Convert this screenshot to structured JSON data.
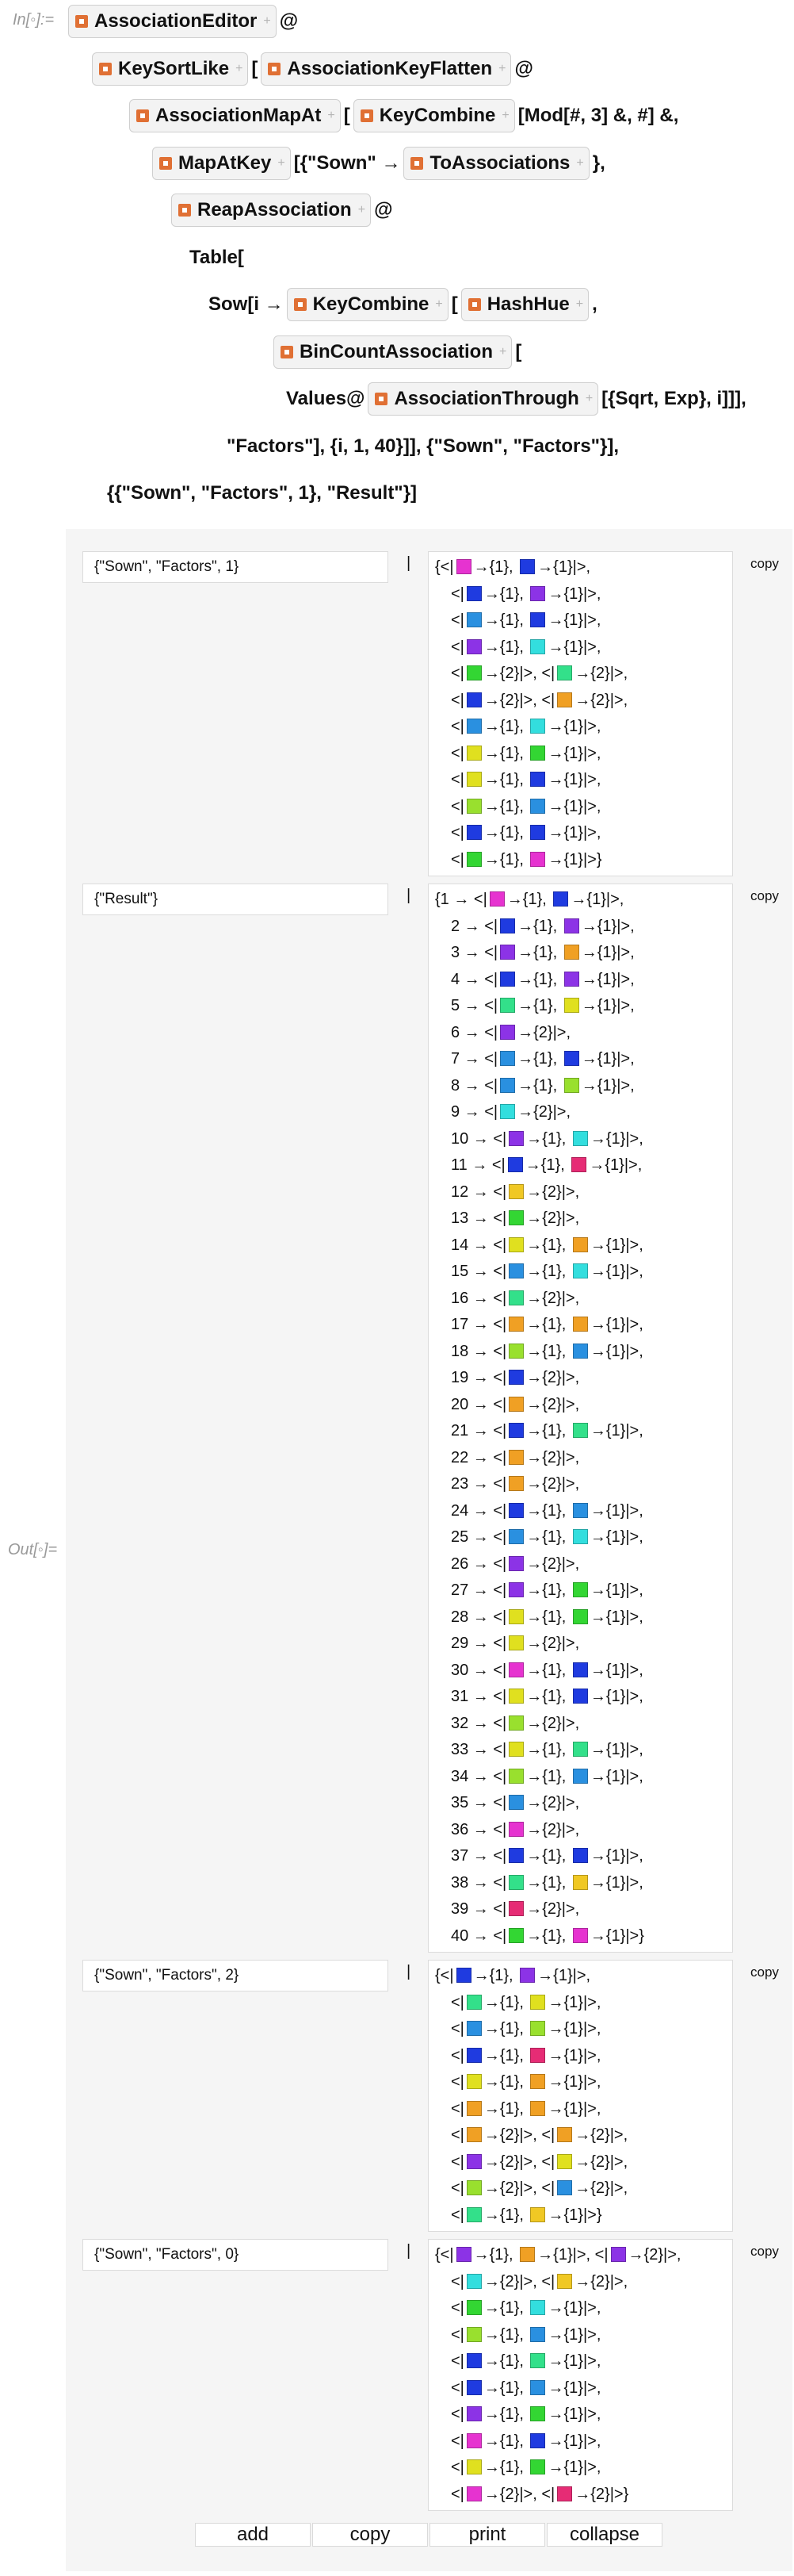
{
  "input_label": "In[◦]:=",
  "output_label": "Out[◦]=",
  "code": [
    [
      {
        "button": "AssociationEditor"
      },
      "@"
    ],
    [
      {
        "button": "KeySortLike"
      },
      "[",
      {
        "button": "AssociationKeyFlatten"
      },
      "@"
    ],
    [
      {
        "button": "AssociationMapAt"
      },
      "[",
      {
        "button": "KeyCombine"
      },
      "[Mod[#, 3] &, #] &,"
    ],
    [
      {
        "button": "MapAtKey"
      },
      "[{\"Sown\" → ",
      {
        "button": "ToAssociations"
      },
      "},"
    ],
    [
      {
        "button": "ReapAssociation"
      },
      "@"
    ],
    [
      "Table["
    ],
    [
      "Sow[i → ",
      {
        "button": "KeyCombine"
      },
      "[",
      {
        "button": "HashHue"
      },
      ","
    ],
    [
      {
        "button": "BinCountAssociation"
      },
      "["
    ],
    [
      "Values@",
      {
        "button": "AssociationThrough"
      },
      "[{Sqrt, Exp}, i]]],"
    ],
    [
      "\"Factors\"], {i, 1, 40}]], {\"Sown\", \"Factors\"}],"
    ],
    [
      "{{\"Sown\", \"Factors\", 1}, \"Result\"}]"
    ]
  ],
  "output": {
    "separator": "|",
    "rows": [
      {
        "key": "{\"Sown\", \"Factors\", 1}",
        "action": "copy",
        "lines": [
          [
            "{<|",
            {
              "swatch": "#e633d0"
            },
            "→{1}, ",
            {
              "swatch": "#1f3be0"
            },
            "→{1}|>,"
          ],
          [
            "<|",
            {
              "swatch": "#1f3be0"
            },
            "→{1}, ",
            {
              "swatch": "#8c33e6"
            },
            "→{1}|>,"
          ],
          [
            "<|",
            {
              "swatch": "#2a90e0"
            },
            "→{1}, ",
            {
              "swatch": "#1f3be0"
            },
            "→{1}|>,"
          ],
          [
            "<|",
            {
              "swatch": "#8c33e6"
            },
            "→{1}, ",
            {
              "swatch": "#33dede"
            },
            "→{1}|>,"
          ],
          [
            "<|",
            {
              "swatch": "#33d633"
            },
            "→{2}|>, <|",
            {
              "swatch": "#33e08a"
            },
            "→{2}|>,"
          ],
          [
            "<|",
            {
              "swatch": "#1f3be0"
            },
            "→{2}|>, <|",
            {
              "swatch": "#f0a024"
            },
            "→{2}|>,"
          ],
          [
            "<|",
            {
              "swatch": "#2a90e0"
            },
            "→{1}, ",
            {
              "swatch": "#33dede"
            },
            "→{1}|>,"
          ],
          [
            "<|",
            {
              "swatch": "#e0e01f"
            },
            "→{1}, ",
            {
              "swatch": "#33d633"
            },
            "→{1}|>,"
          ],
          [
            "<|",
            {
              "swatch": "#e0e01f"
            },
            "→{1}, ",
            {
              "swatch": "#1f3be0"
            },
            "→{1}|>,"
          ],
          [
            "<|",
            {
              "swatch": "#99e02e"
            },
            "→{1}, ",
            {
              "swatch": "#2a90e0"
            },
            "→{1}|>,"
          ],
          [
            "<|",
            {
              "swatch": "#1f3be0"
            },
            "→{1}, ",
            {
              "swatch": "#1f3be0"
            },
            "→{1}|>,"
          ],
          [
            "<|",
            {
              "swatch": "#33d633"
            },
            "→{1}, ",
            {
              "swatch": "#e633d0"
            },
            "→{1}|>}"
          ]
        ]
      },
      {
        "key": "{\"Result\"}",
        "action": "copy",
        "lines": [
          [
            "{1 → <|",
            {
              "swatch": "#e633d0"
            },
            "→{1}, ",
            {
              "swatch": "#1f3be0"
            },
            "→{1}|>,"
          ],
          [
            "2 → <|",
            {
              "swatch": "#1f3be0"
            },
            "→{1}, ",
            {
              "swatch": "#8c33e6"
            },
            "→{1}|>,"
          ],
          [
            "3 → <|",
            {
              "swatch": "#8c33e6"
            },
            "→{1}, ",
            {
              "swatch": "#f0a024"
            },
            "→{1}|>,"
          ],
          [
            "4 → <|",
            {
              "swatch": "#1f3be0"
            },
            "→{1}, ",
            {
              "swatch": "#8c33e6"
            },
            "→{1}|>,"
          ],
          [
            "5 → <|",
            {
              "swatch": "#33e08a"
            },
            "→{1}, ",
            {
              "swatch": "#e0e01f"
            },
            "→{1}|>,"
          ],
          [
            "6 → <|",
            {
              "swatch": "#8c33e6"
            },
            "→{2}|>,"
          ],
          [
            "7 → <|",
            {
              "swatch": "#2a90e0"
            },
            "→{1}, ",
            {
              "swatch": "#1f3be0"
            },
            "→{1}|>,"
          ],
          [
            "8 → <|",
            {
              "swatch": "#2a90e0"
            },
            "→{1}, ",
            {
              "swatch": "#99e02e"
            },
            "→{1}|>,"
          ],
          [
            "9 → <|",
            {
              "swatch": "#33dede"
            },
            "→{2}|>,"
          ],
          [
            "10 → <|",
            {
              "swatch": "#8c33e6"
            },
            "→{1}, ",
            {
              "swatch": "#33dede"
            },
            "→{1}|>,"
          ],
          [
            "11 → <|",
            {
              "swatch": "#1f3be0"
            },
            "→{1}, ",
            {
              "swatch": "#e62c75"
            },
            "→{1}|>,"
          ],
          [
            "12 → <|",
            {
              "swatch": "#f0c824"
            },
            "→{2}|>,"
          ],
          [
            "13 → <|",
            {
              "swatch": "#33d633"
            },
            "→{2}|>,"
          ],
          [
            "14 → <|",
            {
              "swatch": "#e0e01f"
            },
            "→{1}, ",
            {
              "swatch": "#f0a024"
            },
            "→{1}|>,"
          ],
          [
            "15 → <|",
            {
              "swatch": "#2a90e0"
            },
            "→{1}, ",
            {
              "swatch": "#33dede"
            },
            "→{1}|>,"
          ],
          [
            "16 → <|",
            {
              "swatch": "#33e08a"
            },
            "→{2}|>,"
          ],
          [
            "17 → <|",
            {
              "swatch": "#f0a024"
            },
            "→{1}, ",
            {
              "swatch": "#f0a024"
            },
            "→{1}|>,"
          ],
          [
            "18 → <|",
            {
              "swatch": "#99e02e"
            },
            "→{1}, ",
            {
              "swatch": "#2a90e0"
            },
            "→{1}|>,"
          ],
          [
            "19 → <|",
            {
              "swatch": "#1f3be0"
            },
            "→{2}|>,"
          ],
          [
            "20 → <|",
            {
              "swatch": "#f0a024"
            },
            "→{2}|>,"
          ],
          [
            "21 → <|",
            {
              "swatch": "#1f3be0"
            },
            "→{1}, ",
            {
              "swatch": "#33e08a"
            },
            "→{1}|>,"
          ],
          [
            "22 → <|",
            {
              "swatch": "#f0a024"
            },
            "→{2}|>,"
          ],
          [
            "23 → <|",
            {
              "swatch": "#f0a024"
            },
            "→{2}|>,"
          ],
          [
            "24 → <|",
            {
              "swatch": "#1f3be0"
            },
            "→{1}, ",
            {
              "swatch": "#2a90e0"
            },
            "→{1}|>,"
          ],
          [
            "25 → <|",
            {
              "swatch": "#2a90e0"
            },
            "→{1}, ",
            {
              "swatch": "#33dede"
            },
            "→{1}|>,"
          ],
          [
            "26 → <|",
            {
              "swatch": "#8c33e6"
            },
            "→{2}|>,"
          ],
          [
            "27 → <|",
            {
              "swatch": "#8c33e6"
            },
            "→{1}, ",
            {
              "swatch": "#33d633"
            },
            "→{1}|>,"
          ],
          [
            "28 → <|",
            {
              "swatch": "#e0e01f"
            },
            "→{1}, ",
            {
              "swatch": "#33d633"
            },
            "→{1}|>,"
          ],
          [
            "29 → <|",
            {
              "swatch": "#e0e01f"
            },
            "→{2}|>,"
          ],
          [
            "30 → <|",
            {
              "swatch": "#e633d0"
            },
            "→{1}, ",
            {
              "swatch": "#1f3be0"
            },
            "→{1}|>,"
          ],
          [
            "31 → <|",
            {
              "swatch": "#e0e01f"
            },
            "→{1}, ",
            {
              "swatch": "#1f3be0"
            },
            "→{1}|>,"
          ],
          [
            "32 → <|",
            {
              "swatch": "#99e02e"
            },
            "→{2}|>,"
          ],
          [
            "33 → <|",
            {
              "swatch": "#e0e01f"
            },
            "→{1}, ",
            {
              "swatch": "#33e08a"
            },
            "→{1}|>,"
          ],
          [
            "34 → <|",
            {
              "swatch": "#99e02e"
            },
            "→{1}, ",
            {
              "swatch": "#2a90e0"
            },
            "→{1}|>,"
          ],
          [
            "35 → <|",
            {
              "swatch": "#2a90e0"
            },
            "→{2}|>,"
          ],
          [
            "36 → <|",
            {
              "swatch": "#e633d0"
            },
            "→{2}|>,"
          ],
          [
            "37 → <|",
            {
              "swatch": "#1f3be0"
            },
            "→{1}, ",
            {
              "swatch": "#1f3be0"
            },
            "→{1}|>,"
          ],
          [
            "38 → <|",
            {
              "swatch": "#33e08a"
            },
            "→{1}, ",
            {
              "swatch": "#f0c824"
            },
            "→{1}|>,"
          ],
          [
            "39 → <|",
            {
              "swatch": "#e62c75"
            },
            "→{2}|>,"
          ],
          [
            "40 → <|",
            {
              "swatch": "#33d633"
            },
            "→{1}, ",
            {
              "swatch": "#e633d0"
            },
            "→{1}|>}"
          ]
        ]
      },
      {
        "key": "{\"Sown\", \"Factors\", 2}",
        "action": "copy",
        "lines": [
          [
            "{<|",
            {
              "swatch": "#1f3be0"
            },
            "→{1}, ",
            {
              "swatch": "#8c33e6"
            },
            "→{1}|>,"
          ],
          [
            "<|",
            {
              "swatch": "#33e08a"
            },
            "→{1}, ",
            {
              "swatch": "#e0e01f"
            },
            "→{1}|>,"
          ],
          [
            "<|",
            {
              "swatch": "#2a90e0"
            },
            "→{1}, ",
            {
              "swatch": "#99e02e"
            },
            "→{1}|>,"
          ],
          [
            "<|",
            {
              "swatch": "#1f3be0"
            },
            "→{1}, ",
            {
              "swatch": "#e62c75"
            },
            "→{1}|>,"
          ],
          [
            "<|",
            {
              "swatch": "#e0e01f"
            },
            "→{1}, ",
            {
              "swatch": "#f0a024"
            },
            "→{1}|>,"
          ],
          [
            "<|",
            {
              "swatch": "#f0a024"
            },
            "→{1}, ",
            {
              "swatch": "#f0a024"
            },
            "→{1}|>,"
          ],
          [
            "<|",
            {
              "swatch": "#f0a024"
            },
            "→{2}|>, <|",
            {
              "swatch": "#f0a024"
            },
            "→{2}|>,"
          ],
          [
            "<|",
            {
              "swatch": "#8c33e6"
            },
            "→{2}|>, <|",
            {
              "swatch": "#e0e01f"
            },
            "→{2}|>,"
          ],
          [
            "<|",
            {
              "swatch": "#99e02e"
            },
            "→{2}|>, <|",
            {
              "swatch": "#2a90e0"
            },
            "→{2}|>,"
          ],
          [
            "<|",
            {
              "swatch": "#33e08a"
            },
            "→{1}, ",
            {
              "swatch": "#f0c824"
            },
            "→{1}|>}"
          ]
        ]
      },
      {
        "key": "{\"Sown\", \"Factors\", 0}",
        "action": "copy",
        "lines": [
          [
            "{<|",
            {
              "swatch": "#8c33e6"
            },
            "→{1}, ",
            {
              "swatch": "#f0a024"
            },
            "→{1}|>, <|",
            {
              "swatch": "#8c33e6"
            },
            "→{2}|>,"
          ],
          [
            "<|",
            {
              "swatch": "#33dede"
            },
            "→{2}|>, <|",
            {
              "swatch": "#f0c824"
            },
            "→{2}|>,"
          ],
          [
            "<|",
            {
              "swatch": "#33d633"
            },
            "→{1}, ",
            {
              "swatch": "#33dede"
            },
            "→{1}|>,"
          ],
          [
            "<|",
            {
              "swatch": "#99e02e"
            },
            "→{1}, ",
            {
              "swatch": "#2a90e0"
            },
            "→{1}|>,"
          ],
          [
            "<|",
            {
              "swatch": "#1f3be0"
            },
            "→{1}, ",
            {
              "swatch": "#33e08a"
            },
            "→{1}|>,"
          ],
          [
            "<|",
            {
              "swatch": "#1f3be0"
            },
            "→{1}, ",
            {
              "swatch": "#2a90e0"
            },
            "→{1}|>,"
          ],
          [
            "<|",
            {
              "swatch": "#8c33e6"
            },
            "→{1}, ",
            {
              "swatch": "#33d633"
            },
            "→{1}|>,"
          ],
          [
            "<|",
            {
              "swatch": "#e633d0"
            },
            "→{1}, ",
            {
              "swatch": "#1f3be0"
            },
            "→{1}|>,"
          ],
          [
            "<|",
            {
              "swatch": "#e0e01f"
            },
            "→{1}, ",
            {
              "swatch": "#33d633"
            },
            "→{1}|>,"
          ],
          [
            "<|",
            {
              "swatch": "#e633d0"
            },
            "→{2}|>, <|",
            {
              "swatch": "#e62c75"
            },
            "→{2}|>}"
          ]
        ]
      }
    ],
    "buttons": [
      "add",
      "copy",
      "print",
      "collapse"
    ]
  }
}
